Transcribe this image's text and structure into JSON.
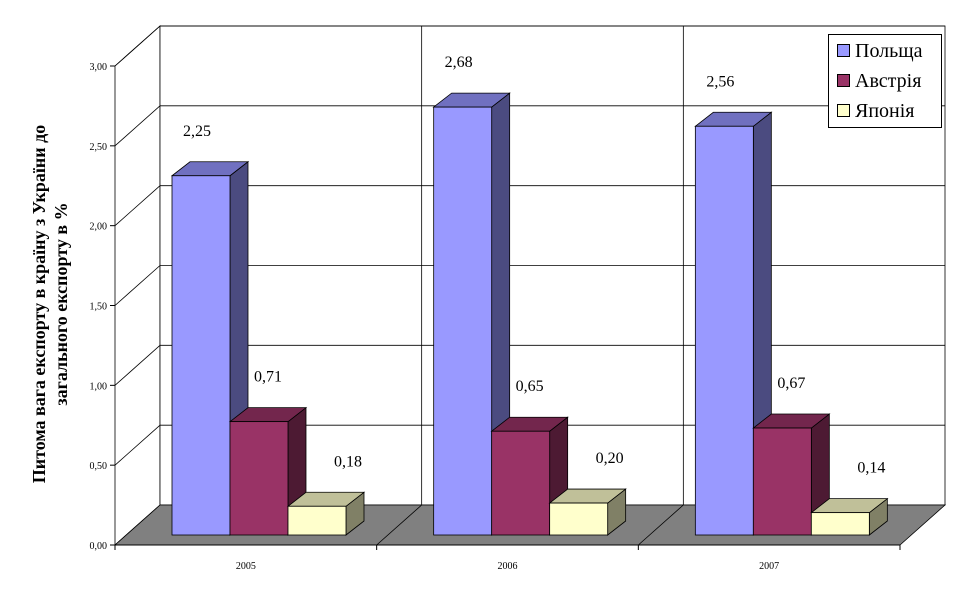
{
  "chart_data": {
    "type": "bar",
    "style": "3d-clustered",
    "title": "",
    "xlabel": "",
    "ylabel": "Питома вага експорту в країну з України до загального експорту в %",
    "categories": [
      "2005",
      "2006",
      "2007"
    ],
    "series": [
      {
        "name": "Польща",
        "values": [
          2.25,
          2.68,
          2.56
        ],
        "labels": [
          "2,25",
          "2,68",
          "2,56"
        ],
        "color": "#9999FF",
        "side": "#4B4B80",
        "top": "#7070C0"
      },
      {
        "name": "Австрія",
        "values": [
          0.71,
          0.65,
          0.67
        ],
        "labels": [
          "0,71",
          "0,65",
          "0,67"
        ],
        "color": "#993366",
        "side": "#4D1A33",
        "top": "#73264D"
      },
      {
        "name": "Японія",
        "values": [
          0.18,
          0.2,
          0.14
        ],
        "labels": [
          "0,18",
          "0,20",
          "0,14"
        ],
        "color": "#FFFFCC",
        "side": "#808066",
        "top": "#C0C099"
      }
    ],
    "yticks": [
      "0,00",
      "0,50",
      "1,00",
      "1,50",
      "2,00",
      "2,50",
      "3,00"
    ],
    "ylim": [
      0,
      3
    ],
    "grid": true,
    "legend": "top-right"
  }
}
